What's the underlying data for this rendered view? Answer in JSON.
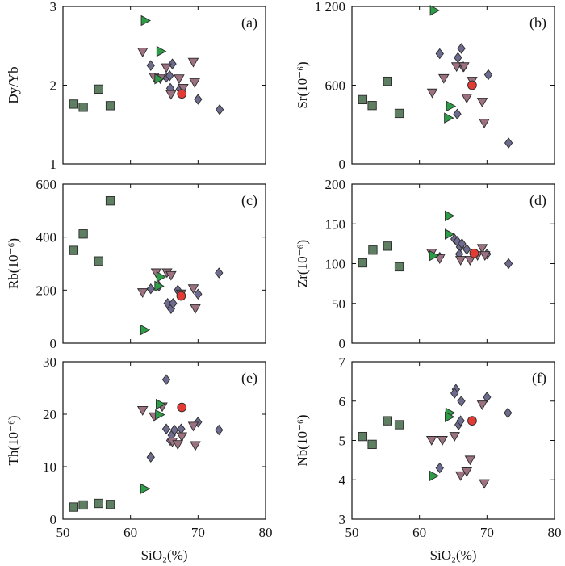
{
  "figure": {
    "xlabel": "SiO₂(%)",
    "colors": {
      "square": "#5f7f63",
      "diamond": "#6e6c8e",
      "triangle_down": "#9c7282",
      "triangle_right": "#2e9d48",
      "circle": "#e23a34"
    }
  },
  "chart_data": [
    {
      "type": "scatter",
      "panel_label": "(a)",
      "ylabel": "Dy/Yb",
      "xlim": [
        50,
        80
      ],
      "ylim": [
        1,
        3
      ],
      "xticks": [
        50,
        60,
        70,
        80
      ],
      "yticks": [
        1,
        2,
        3
      ],
      "ytick_labels": [
        "1",
        "2",
        "3"
      ],
      "show_xtick_labels": false,
      "series": [
        {
          "marker": "square",
          "points": [
            [
              51.6,
              1.76
            ],
            [
              53,
              1.72
            ],
            [
              55.3,
              1.95
            ],
            [
              57,
              1.74
            ]
          ]
        },
        {
          "marker": "diamond",
          "points": [
            [
              63,
              2.25
            ],
            [
              65.3,
              2.1
            ],
            [
              65.8,
              2.12
            ],
            [
              66.2,
              2.27
            ],
            [
              65.9,
              1.96
            ],
            [
              67.3,
              1.95
            ],
            [
              70,
              1.82
            ],
            [
              73.2,
              1.69
            ]
          ]
        },
        {
          "marker": "triangle_down",
          "points": [
            [
              61.8,
              2.42
            ],
            [
              63.5,
              2.1
            ],
            [
              64.4,
              2.08
            ],
            [
              65.3,
              2.22
            ],
            [
              66,
              1.88
            ],
            [
              67.2,
              2.08
            ],
            [
              67.8,
              1.96
            ],
            [
              69.3,
              2.29
            ],
            [
              69.5,
              2.03
            ]
          ]
        },
        {
          "marker": "triangle_right",
          "points": [
            [
              62.2,
              2.82
            ],
            [
              64.5,
              2.43
            ],
            [
              64.2,
              2.08
            ]
          ]
        },
        {
          "marker": "circle",
          "points": [
            [
              67.6,
              1.89
            ]
          ]
        }
      ]
    },
    {
      "type": "scatter",
      "panel_label": "(b)",
      "ylabel": "Sr(10⁻⁶)",
      "xlim": [
        50,
        80
      ],
      "ylim": [
        0,
        1200
      ],
      "xticks": [
        50,
        60,
        70,
        80
      ],
      "yticks": [
        0,
        600,
        1200
      ],
      "ytick_labels": [
        "0",
        "600",
        "1 200"
      ],
      "show_xtick_labels": false,
      "series": [
        {
          "marker": "square",
          "points": [
            [
              51.6,
              490
            ],
            [
              53,
              445
            ],
            [
              55.3,
              630
            ],
            [
              57,
              385
            ]
          ]
        },
        {
          "marker": "diamond",
          "points": [
            [
              63,
              840
            ],
            [
              65.7,
              810
            ],
            [
              66.2,
              880
            ],
            [
              66.5,
              740
            ],
            [
              65.6,
              380
            ],
            [
              70.2,
              680
            ],
            [
              73.2,
              160
            ]
          ]
        },
        {
          "marker": "triangle_down",
          "points": [
            [
              61.9,
              540
            ],
            [
              63.6,
              650
            ],
            [
              65.5,
              740
            ],
            [
              66.6,
              740
            ],
            [
              67,
              500
            ],
            [
              67.8,
              630
            ],
            [
              69.3,
              470
            ],
            [
              69.6,
              310
            ]
          ]
        },
        {
          "marker": "triangle_right",
          "points": [
            [
              62.2,
              1170
            ],
            [
              64.6,
              440
            ],
            [
              64.3,
              350
            ]
          ]
        },
        {
          "marker": "circle",
          "points": [
            [
              67.8,
              600
            ]
          ]
        }
      ]
    },
    {
      "type": "scatter",
      "panel_label": "(c)",
      "ylabel": "Rb(10⁻⁶)",
      "xlim": [
        50,
        80
      ],
      "ylim": [
        0,
        600
      ],
      "xticks": [
        50,
        60,
        70,
        80
      ],
      "yticks": [
        0,
        200,
        400,
        600
      ],
      "ytick_labels": [
        "0",
        "200",
        "400",
        "600"
      ],
      "show_xtick_labels": false,
      "series": [
        {
          "marker": "square",
          "points": [
            [
              51.6,
              350
            ],
            [
              53,
              412
            ],
            [
              55.3,
              310
            ],
            [
              57,
              537
            ]
          ]
        },
        {
          "marker": "diamond",
          "points": [
            [
              63,
              205
            ],
            [
              64.2,
              215
            ],
            [
              65.5,
              150
            ],
            [
              66,
              130
            ],
            [
              66.3,
              150
            ],
            [
              67,
              200
            ],
            [
              70,
              185
            ],
            [
              73.1,
              265
            ]
          ]
        },
        {
          "marker": "triangle_down",
          "points": [
            [
              61.8,
              190
            ],
            [
              63.8,
              265
            ],
            [
              65.4,
              265
            ],
            [
              66,
              255
            ],
            [
              67.5,
              185
            ],
            [
              69.3,
              205
            ],
            [
              69.6,
              130
            ]
          ]
        },
        {
          "marker": "triangle_right",
          "points": [
            [
              62.1,
              50
            ],
            [
              64.5,
              250
            ],
            [
              64.2,
              215
            ]
          ]
        },
        {
          "marker": "circle",
          "points": [
            [
              67.5,
              178
            ]
          ]
        }
      ]
    },
    {
      "type": "scatter",
      "panel_label": "(d)",
      "ylabel": "Zr(10⁻⁶)",
      "xlim": [
        50,
        80
      ],
      "ylim": [
        0,
        200
      ],
      "xticks": [
        50,
        60,
        70,
        80
      ],
      "yticks": [
        0,
        50,
        100,
        150,
        200
      ],
      "ytick_labels": [
        "0",
        "50",
        "100",
        "150",
        "200"
      ],
      "show_xtick_labels": false,
      "series": [
        {
          "marker": "square",
          "points": [
            [
              51.6,
              101
            ],
            [
              53.1,
              117
            ],
            [
              55.3,
              122
            ],
            [
              57,
              96
            ]
          ]
        },
        {
          "marker": "diamond",
          "points": [
            [
              63,
              108
            ],
            [
              65.2,
              131
            ],
            [
              65.6,
              128
            ],
            [
              66,
              121
            ],
            [
              66.3,
              125
            ],
            [
              65.9,
              112
            ],
            [
              67,
              118
            ],
            [
              70,
              112
            ],
            [
              73.2,
              100
            ]
          ]
        },
        {
          "marker": "triangle_down",
          "points": [
            [
              61.8,
              113
            ],
            [
              63,
              106
            ],
            [
              66.1,
              104
            ],
            [
              67.5,
              104
            ],
            [
              68.6,
              110
            ],
            [
              69.3,
              119
            ],
            [
              69.7,
              110
            ]
          ]
        },
        {
          "marker": "triangle_right",
          "points": [
            [
              62.1,
              110
            ],
            [
              64.4,
              160
            ],
            [
              64.4,
              137
            ]
          ]
        },
        {
          "marker": "circle",
          "points": [
            [
              68.1,
              113
            ]
          ]
        }
      ]
    },
    {
      "type": "scatter",
      "panel_label": "(e)",
      "ylabel": "Th(10⁻⁶)",
      "xlim": [
        50,
        80
      ],
      "ylim": [
        0,
        30
      ],
      "xticks": [
        50,
        60,
        70,
        80
      ],
      "yticks": [
        0,
        10,
        20,
        30
      ],
      "ytick_labels": [
        "0",
        "10",
        "20",
        "30"
      ],
      "show_xtick_labels": true,
      "series": [
        {
          "marker": "square",
          "points": [
            [
              51.6,
              2.3
            ],
            [
              53,
              2.7
            ],
            [
              55.3,
              3
            ],
            [
              57,
              2.8
            ]
          ]
        },
        {
          "marker": "diamond",
          "points": [
            [
              63,
              11.8
            ],
            [
              65.3,
              26.6
            ],
            [
              65.3,
              17.2
            ],
            [
              65.9,
              15
            ],
            [
              66.1,
              16
            ],
            [
              66.5,
              17
            ],
            [
              67.5,
              17.2
            ],
            [
              70,
              18.5
            ],
            [
              73.1,
              17
            ]
          ]
        },
        {
          "marker": "triangle_down",
          "points": [
            [
              61.8,
              20.7
            ],
            [
              63.5,
              19.5
            ],
            [
              64.7,
              21.4
            ],
            [
              66.2,
              14.7
            ],
            [
              67,
              14.2
            ],
            [
              67.6,
              15.7
            ],
            [
              69.3,
              17.7
            ],
            [
              69.6,
              14
            ]
          ]
        },
        {
          "marker": "triangle_right",
          "points": [
            [
              62.1,
              5.8
            ],
            [
              64.4,
              21.9
            ],
            [
              64.3,
              19.9
            ]
          ]
        },
        {
          "marker": "circle",
          "points": [
            [
              67.6,
              21.3
            ]
          ]
        }
      ]
    },
    {
      "type": "scatter",
      "panel_label": "(f)",
      "ylabel": "Nb(10⁻⁶)",
      "xlim": [
        50,
        80
      ],
      "ylim": [
        3,
        7
      ],
      "xticks": [
        50,
        60,
        70,
        80
      ],
      "yticks": [
        3,
        4,
        5,
        6,
        7
      ],
      "ytick_labels": [
        "3",
        "4",
        "5",
        "6",
        "7"
      ],
      "show_xtick_labels": true,
      "series": [
        {
          "marker": "square",
          "points": [
            [
              51.6,
              5.1
            ],
            [
              53,
              4.9
            ],
            [
              55.3,
              5.5
            ],
            [
              57,
              5.4
            ]
          ]
        },
        {
          "marker": "diamond",
          "points": [
            [
              63,
              4.3
            ],
            [
              65.4,
              6.3
            ],
            [
              65.2,
              6.2
            ],
            [
              66.2,
              6
            ],
            [
              65.8,
              5.4
            ],
            [
              66.1,
              5.5
            ],
            [
              70,
              6.1
            ],
            [
              73.1,
              5.7
            ]
          ]
        },
        {
          "marker": "triangle_down",
          "points": [
            [
              61.8,
              5
            ],
            [
              63.4,
              5
            ],
            [
              65.2,
              5.1
            ],
            [
              66.1,
              4.1
            ],
            [
              67,
              4.2
            ],
            [
              67.5,
              4.5
            ],
            [
              69.3,
              5.9
            ],
            [
              69.6,
              3.9
            ]
          ]
        },
        {
          "marker": "triangle_right",
          "points": [
            [
              62.1,
              4.1
            ],
            [
              64.5,
              5.7
            ],
            [
              64.4,
              5.6
            ]
          ]
        },
        {
          "marker": "circle",
          "points": [
            [
              67.8,
              5.5
            ]
          ]
        }
      ]
    }
  ]
}
